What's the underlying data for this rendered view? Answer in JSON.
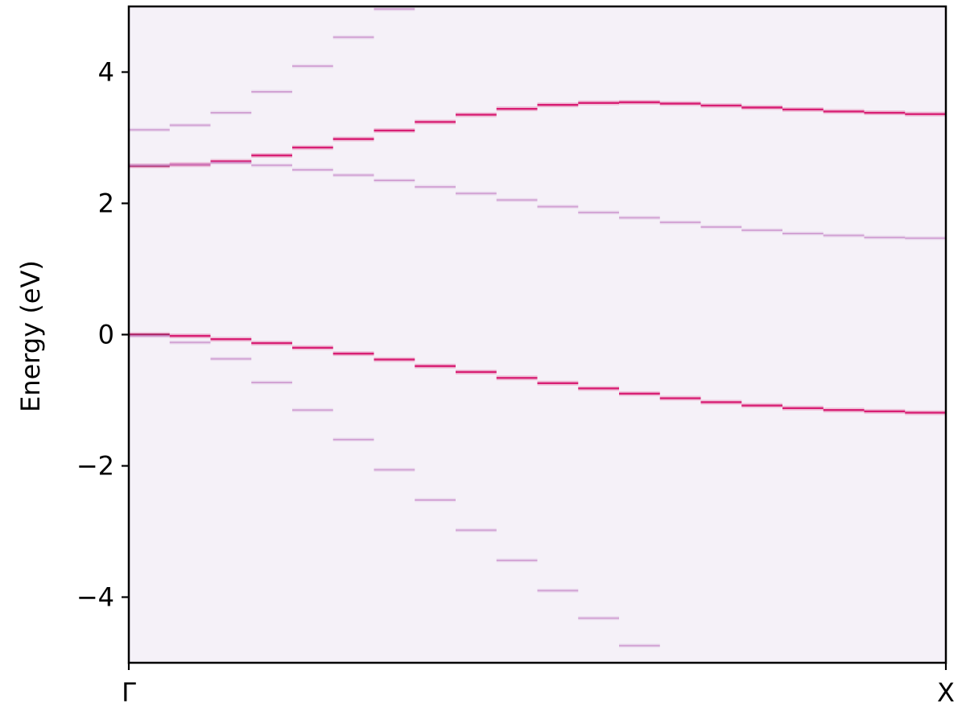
{
  "chart_data": {
    "type": "heatmap",
    "title": "",
    "xlabel": "",
    "ylabel": "Energy (eV)",
    "xlim": [
      0,
      20
    ],
    "ylim": [
      -5,
      5
    ],
    "x_tick_values": [
      0,
      20
    ],
    "x_tick_labels": [
      "Γ",
      "X"
    ],
    "y_ticks": [
      4,
      2,
      0,
      -2,
      -4
    ],
    "y_tick_labels": [
      "4",
      "2",
      "0",
      "−2",
      "−4"
    ],
    "grid": false,
    "legend": "none",
    "background_color": "#f5f1f8",
    "colors": {
      "strong": "#d6166f",
      "weak": "#c98fcb",
      "peak": "#a10046"
    },
    "series": [
      {
        "weight": "strong",
        "values": [
          0.0,
          -0.02,
          -0.07,
          -0.13,
          -0.2,
          -0.29,
          -0.38,
          -0.48,
          -0.57,
          -0.66,
          -0.74,
          -0.82,
          -0.9,
          -0.97,
          -1.03,
          -1.08,
          -1.12,
          -1.15,
          -1.17,
          -1.19
        ]
      },
      {
        "weight": "weak",
        "values": [
          -0.02,
          -0.12,
          -0.37,
          -0.73,
          -1.15,
          -1.6,
          -2.06,
          -2.52,
          -2.98,
          -3.44,
          -3.9,
          -4.32,
          -4.74
        ]
      },
      {
        "weight": "strong",
        "values": [
          2.57,
          2.59,
          2.64,
          2.73,
          2.85,
          2.98,
          3.11,
          3.24,
          3.35,
          3.44,
          3.5,
          3.53,
          3.54,
          3.52,
          3.49,
          3.46,
          3.43,
          3.4,
          3.38,
          3.36
        ]
      },
      {
        "weight": "weak",
        "values": [
          2.58,
          2.59,
          2.62,
          2.58,
          2.51,
          2.43,
          2.35,
          2.25,
          2.15,
          2.05,
          1.95,
          1.86,
          1.78,
          1.71,
          1.64,
          1.59,
          1.54,
          1.51,
          1.48,
          1.47
        ]
      },
      {
        "weight": "weak",
        "values": [
          3.12,
          3.19,
          3.38,
          3.7,
          4.09,
          4.53,
          4.96
        ]
      }
    ]
  }
}
